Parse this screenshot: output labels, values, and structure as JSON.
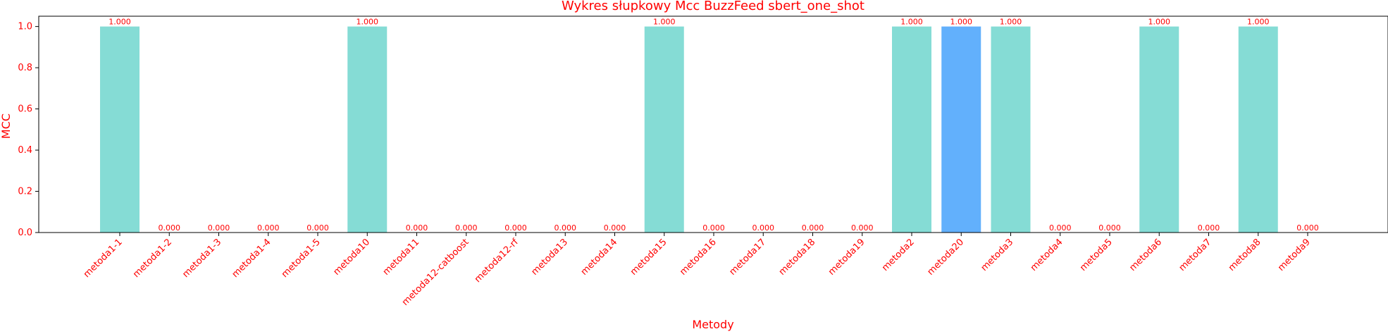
{
  "chart_data": {
    "type": "bar",
    "title": "Wykres słupkowy Mcc BuzzFeed sbert_one_shot",
    "xlabel": "Metody",
    "ylabel": "MCC",
    "ylim": [
      0,
      1.05
    ],
    "yticks": [
      "0.0",
      "0.2",
      "0.4",
      "0.6",
      "0.8",
      "1.0"
    ],
    "grid": false,
    "categories": [
      "metoda1-1",
      "metoda1-2",
      "metoda1-3",
      "metoda1-4",
      "metoda1-5",
      "metoda10",
      "metoda11",
      "metoda12-catboost",
      "metoda12-rf",
      "metoda13",
      "metoda14",
      "metoda15",
      "metoda16",
      "metoda17",
      "metoda18",
      "metoda19",
      "metoda2",
      "metoda20",
      "metoda3",
      "metoda4",
      "metoda5",
      "metoda6",
      "metoda7",
      "metoda8",
      "metoda9"
    ],
    "values": [
      1,
      0,
      0,
      0,
      0,
      1,
      0,
      0,
      0,
      0,
      0,
      1,
      0,
      0,
      0,
      0,
      1,
      1,
      1,
      0,
      0,
      1,
      0,
      1,
      0
    ],
    "value_labels": [
      "1.000",
      "0.000",
      "0.000",
      "0.000",
      "0.000",
      "1.000",
      "0.000",
      "0.000",
      "0.000",
      "0.000",
      "0.000",
      "1.000",
      "0.000",
      "0.000",
      "0.000",
      "0.000",
      "1.000",
      "1.000",
      "1.000",
      "0.000",
      "0.000",
      "1.000",
      "0.000",
      "1.000",
      "0.000"
    ],
    "highlight_category": "metoda20",
    "colors": {
      "bar": "#85dcd5",
      "highlight": "#62b0fc",
      "text": "#ff0000",
      "axis": "#000000"
    }
  }
}
